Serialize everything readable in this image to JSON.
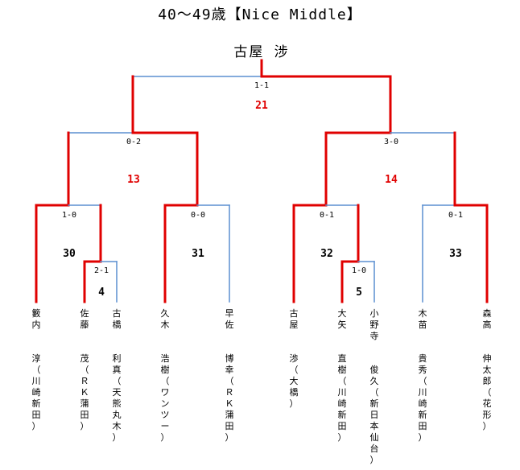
{
  "title": "40～49歳【Nice Middle】",
  "champion": "古屋 涉",
  "colors": {
    "winner_line": "#e00000",
    "loser_line": "#5b8fd0",
    "match_number_red": "#e00000"
  },
  "matches": [
    {
      "id": "m21",
      "number": "21",
      "score": "1-1",
      "number_color": "red"
    },
    {
      "id": "m13",
      "number": "13",
      "score": "0-2",
      "number_color": "red"
    },
    {
      "id": "m14",
      "number": "14",
      "score": "3-0",
      "number_color": "red"
    },
    {
      "id": "m30",
      "number": "30",
      "score": "1-0",
      "number_color": "black"
    },
    {
      "id": "m31",
      "number": "31",
      "score": "0-0",
      "number_color": "black"
    },
    {
      "id": "m32",
      "number": "32",
      "score": "0-1",
      "number_color": "black"
    },
    {
      "id": "m33",
      "number": "33",
      "score": "0-1",
      "number_color": "black"
    },
    {
      "id": "m4",
      "number": "4",
      "score": "2-1",
      "number_color": "black"
    },
    {
      "id": "m5",
      "number": "5",
      "score": "1-0",
      "number_color": "black"
    }
  ],
  "players": [
    {
      "name": "籔内",
      "given": "淳",
      "club": "（川崎新田）"
    },
    {
      "name": "佐藤",
      "given": "茂",
      "club": "（ＲＫ蒲田）"
    },
    {
      "name": "古橋",
      "given": "利真",
      "club": "（天熊丸木）"
    },
    {
      "name": "久木",
      "given": "浩樹",
      "club": "（ワンツー）"
    },
    {
      "name": "早佐",
      "given": "博幸",
      "club": "（ＲＫ蒲田）"
    },
    {
      "name": "古屋",
      "given": "渉",
      "club": "（大橋）"
    },
    {
      "name": "大矢",
      "given": "直樹",
      "club": "（川崎新田）"
    },
    {
      "name": "小野寺",
      "given": "俊久",
      "club": "（新日本仙台）"
    },
    {
      "name": "木苗",
      "given": "貴秀",
      "club": "（川崎新田）"
    },
    {
      "name": "森高",
      "given": "伸太郎",
      "club": "（花形）"
    }
  ]
}
